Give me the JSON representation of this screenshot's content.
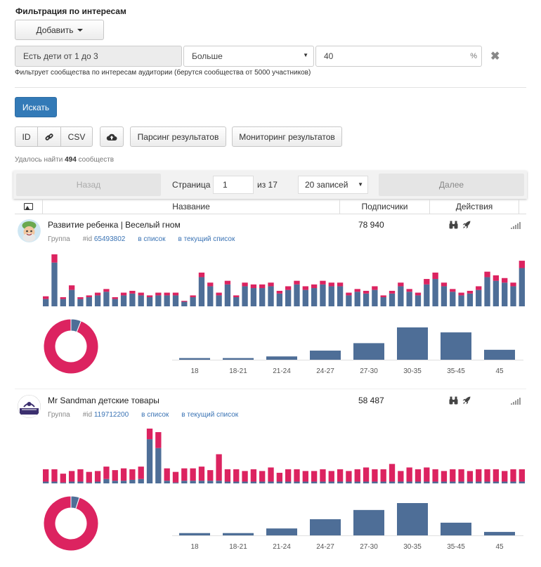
{
  "heading": "Фильтрация по интересам",
  "add_button": "Добавить",
  "filter": {
    "interest": "Есть дети от 1 до 3",
    "operator": "Больше",
    "value": "40",
    "unit": "%",
    "remove": "✖",
    "hint": "Фильтрует сообщества по интересам аудитории (берутся сообщества от 5000 участников)"
  },
  "search_button": "Искать",
  "export": {
    "id": "ID",
    "link_icon": "link-icon",
    "csv": "CSV"
  },
  "upload_icon": "cloud-upload-icon",
  "parse_button": "Парсинг результатов",
  "monitor_button": "Мониторинг результатов",
  "found": {
    "prefix": "Удалось найти ",
    "count": "494",
    "suffix": " сообществ"
  },
  "pager": {
    "prev": "Назад",
    "page_label": "Страница",
    "page": "1",
    "of": "из 17",
    "per_page": "20 записей",
    "next": "Далее"
  },
  "table_headers": {
    "name": "Название",
    "subscribers": "Подписчики",
    "actions": "Действия"
  },
  "colors": {
    "blue": "#4e6e97",
    "pink": "#dc2360",
    "donut_bg": "#ffffff"
  },
  "groups": [
    {
      "name": "Развитие ребенка | Веселый гном",
      "subscribers": "78 940",
      "type": "Группа",
      "id_label": "#id",
      "id": "65493802",
      "to_list": "в список",
      "to_current_list": "в текущий список",
      "activity": [
        [
          8,
          3
        ],
        [
          48,
          9
        ],
        [
          8,
          2
        ],
        [
          18,
          5
        ],
        [
          8,
          2
        ],
        [
          10,
          2
        ],
        [
          12,
          3
        ],
        [
          16,
          3
        ],
        [
          8,
          2
        ],
        [
          12,
          3
        ],
        [
          14,
          3
        ],
        [
          12,
          3
        ],
        [
          10,
          2
        ],
        [
          12,
          3
        ],
        [
          12,
          3
        ],
        [
          12,
          3
        ],
        [
          5,
          1
        ],
        [
          10,
          2
        ],
        [
          32,
          5
        ],
        [
          22,
          4
        ],
        [
          12,
          3
        ],
        [
          24,
          4
        ],
        [
          10,
          2
        ],
        [
          22,
          4
        ],
        [
          20,
          4
        ],
        [
          20,
          4
        ],
        [
          22,
          4
        ],
        [
          14,
          3
        ],
        [
          18,
          4
        ],
        [
          24,
          4
        ],
        [
          18,
          4
        ],
        [
          20,
          4
        ],
        [
          24,
          4
        ],
        [
          22,
          4
        ],
        [
          22,
          4
        ],
        [
          12,
          3
        ],
        [
          16,
          3
        ],
        [
          14,
          3
        ],
        [
          18,
          4
        ],
        [
          10,
          2
        ],
        [
          14,
          3
        ],
        [
          22,
          4
        ],
        [
          16,
          3
        ],
        [
          12,
          3
        ],
        [
          24,
          6
        ],
        [
          30,
          7
        ],
        [
          22,
          4
        ],
        [
          16,
          3
        ],
        [
          12,
          3
        ],
        [
          14,
          3
        ],
        [
          18,
          4
        ],
        [
          32,
          6
        ],
        [
          28,
          6
        ],
        [
          26,
          5
        ],
        [
          22,
          4
        ],
        [
          42,
          8
        ]
      ],
      "female_share": 0.94,
      "age_categories": [
        "18",
        "18-21",
        "21-24",
        "24-27",
        "27-30",
        "30-35",
        "35-45",
        "45"
      ],
      "age_values": [
        2,
        2,
        4,
        11,
        20,
        39,
        33,
        12
      ]
    },
    {
      "name": "Mr Sandman детские товары",
      "subscribers": "58 487",
      "type": "Группа",
      "id_label": "#id",
      "id": "119712200",
      "to_list": "в список",
      "to_current_list": "в текущий список",
      "activity": [
        [
          2,
          14
        ],
        [
          2,
          14
        ],
        [
          1,
          10
        ],
        [
          2,
          12
        ],
        [
          2,
          14
        ],
        [
          1,
          12
        ],
        [
          2,
          12
        ],
        [
          5,
          14
        ],
        [
          3,
          12
        ],
        [
          3,
          14
        ],
        [
          4,
          12
        ],
        [
          5,
          14
        ],
        [
          50,
          12
        ],
        [
          40,
          18
        ],
        [
          3,
          14
        ],
        [
          1,
          12
        ],
        [
          3,
          14
        ],
        [
          3,
          14
        ],
        [
          3,
          16
        ],
        [
          3,
          12
        ],
        [
          3,
          30
        ],
        [
          2,
          14
        ],
        [
          2,
          14
        ],
        [
          2,
          12
        ],
        [
          2,
          14
        ],
        [
          2,
          12
        ],
        [
          2,
          16
        ],
        [
          2,
          10
        ],
        [
          2,
          14
        ],
        [
          2,
          14
        ],
        [
          2,
          12
        ],
        [
          2,
          12
        ],
        [
          2,
          14
        ],
        [
          2,
          12
        ],
        [
          2,
          14
        ],
        [
          2,
          12
        ],
        [
          2,
          14
        ],
        [
          2,
          16
        ],
        [
          2,
          14
        ],
        [
          2,
          14
        ],
        [
          2,
          20
        ],
        [
          2,
          12
        ],
        [
          2,
          16
        ],
        [
          2,
          14
        ],
        [
          2,
          16
        ],
        [
          2,
          14
        ],
        [
          2,
          12
        ],
        [
          2,
          14
        ],
        [
          2,
          14
        ],
        [
          2,
          12
        ],
        [
          2,
          14
        ],
        [
          2,
          14
        ],
        [
          2,
          14
        ],
        [
          2,
          12
        ],
        [
          2,
          14
        ],
        [
          2,
          14
        ]
      ],
      "female_share": 0.95,
      "age_categories": [
        "18",
        "18-21",
        "21-24",
        "24-27",
        "27-30",
        "30-35",
        "35-45",
        "45"
      ],
      "age_values": [
        2,
        2,
        6,
        14,
        22,
        28,
        11,
        3
      ]
    }
  ]
}
